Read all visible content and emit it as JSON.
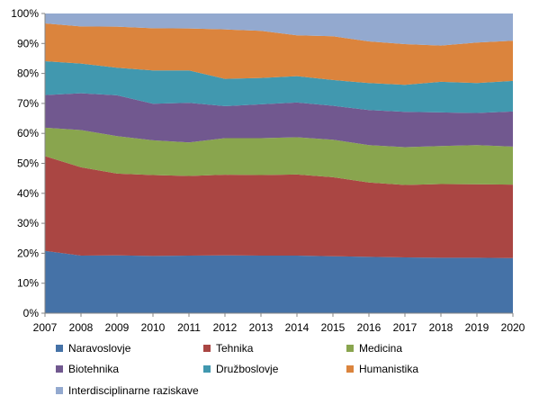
{
  "chart_data": {
    "type": "area",
    "stacked": true,
    "percent": true,
    "x": [
      "2007",
      "2008",
      "2009",
      "2010",
      "2011",
      "2012",
      "2013",
      "2014",
      "2015",
      "2016",
      "2017",
      "2018",
      "2019",
      "2020"
    ],
    "ylim": [
      0,
      100
    ],
    "yticks": [
      "0%",
      "10%",
      "20%",
      "30%",
      "40%",
      "50%",
      "60%",
      "70%",
      "80%",
      "90%",
      "100%"
    ],
    "grid": false,
    "legend_position": "bottom",
    "series": [
      {
        "name": "Naravoslovje",
        "color": "#4572A7",
        "values": [
          20.8,
          19.2,
          19.3,
          19.1,
          19.2,
          19.3,
          19.2,
          19.2,
          19.0,
          18.8,
          18.6,
          18.5,
          18.5,
          18.4
        ]
      },
      {
        "name": "Tehnika",
        "color": "#AA4643",
        "values": [
          31.6,
          29.5,
          27.3,
          27.0,
          26.6,
          26.9,
          26.9,
          27.1,
          26.4,
          24.8,
          24.2,
          24.6,
          24.5,
          24.5
        ]
      },
      {
        "name": "Medicina",
        "color": "#89A54E",
        "values": [
          9.5,
          12.4,
          12.5,
          11.6,
          11.2,
          12.2,
          12.3,
          12.4,
          12.5,
          12.5,
          12.6,
          12.7,
          13.1,
          12.7
        ]
      },
      {
        "name": "Biotehnika",
        "color": "#71588F",
        "values": [
          10.9,
          12.3,
          13.6,
          12.2,
          13.2,
          10.7,
          11.3,
          11.6,
          11.3,
          11.7,
          11.8,
          11.2,
          10.7,
          11.7
        ]
      },
      {
        "name": "Družboslovje",
        "color": "#4198AF",
        "values": [
          11.3,
          9.9,
          9.2,
          11.1,
          10.8,
          9.1,
          8.8,
          8.8,
          8.6,
          9.0,
          9.0,
          10.2,
          10.0,
          10.2
        ]
      },
      {
        "name": "Humanistika",
        "color": "#DB843D",
        "values": [
          12.6,
          12.4,
          13.7,
          14.1,
          14.0,
          16.5,
          15.7,
          13.6,
          14.6,
          13.9,
          13.6,
          12.1,
          13.5,
          13.4
        ]
      },
      {
        "name": "Interdisciplinarne raziskave",
        "color": "#93A9CF",
        "values": [
          3.3,
          4.3,
          4.4,
          4.9,
          5.0,
          5.3,
          5.8,
          7.3,
          7.6,
          9.3,
          10.2,
          10.7,
          9.7,
          9.1
        ]
      }
    ]
  }
}
